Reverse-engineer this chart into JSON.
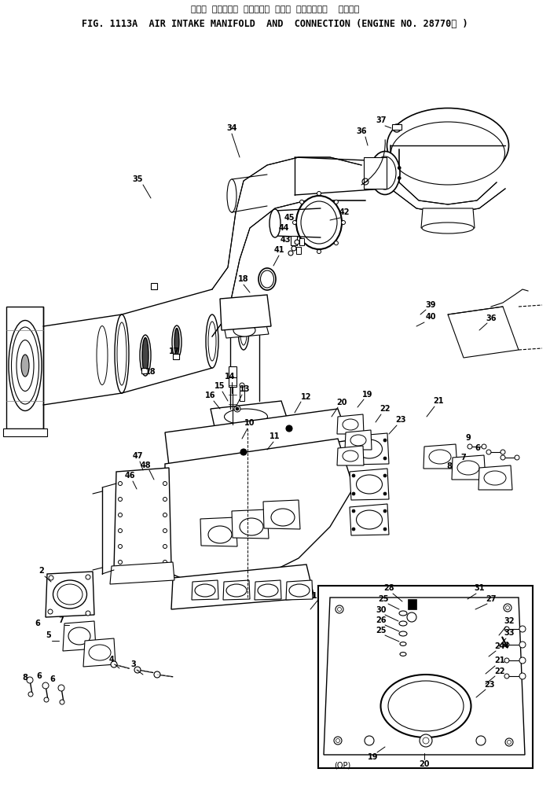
{
  "title_japanese": "エアー  インテーク  マニホルド  および  コネクション    適用号機",
  "title_english": "FIG. 1113A  AIR INTAKE MANIFOLD  AND  CONNECTION (ENGINE NO. 28770－ )",
  "bg": "#ffffff",
  "lc": "#000000",
  "fig_width": 7.0,
  "fig_height": 10.15,
  "dpi": 100
}
